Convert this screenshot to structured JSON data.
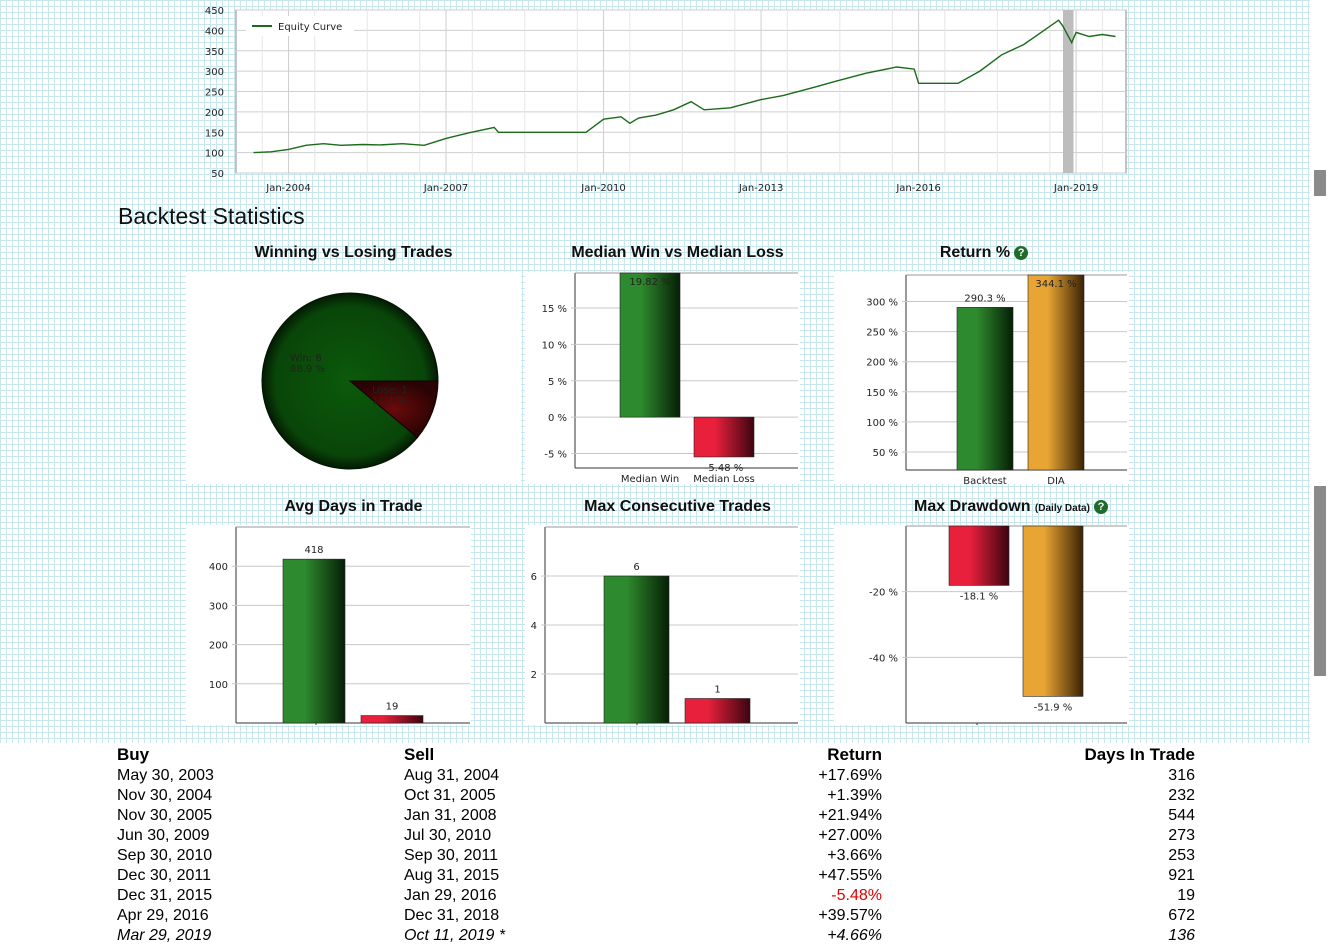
{
  "equity_chart": {
    "legend": "Equity Curve",
    "y_ticks": [
      "450",
      "400",
      "350",
      "300",
      "250",
      "200",
      "150",
      "100",
      "50"
    ],
    "x_ticks": [
      "Jan-2004",
      "Jan-2007",
      "Jan-2010",
      "Jan-2013",
      "Jan-2016",
      "Jan-2019"
    ]
  },
  "section_title": "Backtest Statistics",
  "charts_titles": {
    "win_loss": "Winning vs Losing Trades",
    "median": "Median Win vs Median Loss",
    "return": "Return %",
    "avg_days": "Avg Days in Trade",
    "max_consec": "Max Consecutive Trades",
    "max_dd": "Max Drawdown",
    "max_dd_note": "(Daily Data)",
    "help": "?"
  },
  "colors": {
    "line": "#1a6b1a",
    "win_green": "#1e7a22",
    "loss_red": "#c8102e",
    "gold": "#d99a2b",
    "pie_win": "#0a4a0a",
    "pie_loss": "#5c0a0a"
  },
  "chart_data": [
    {
      "type": "line",
      "title": "",
      "series": [
        {
          "name": "Equity Curve",
          "x": [
            "2003-05",
            "2003-09",
            "2004-01",
            "2004-05",
            "2004-09",
            "2005-01",
            "2005-06",
            "2005-10",
            "2006-03",
            "2006-08",
            "2007-01",
            "2007-06",
            "2007-12",
            "2008-01",
            "2009-06",
            "2009-09",
            "2010-01",
            "2010-05",
            "2010-07",
            "2010-09",
            "2011-01",
            "2011-05",
            "2011-09",
            "2011-12",
            "2012-06",
            "2013-01",
            "2013-06",
            "2014-01",
            "2014-06",
            "2015-01",
            "2015-08",
            "2015-12",
            "2016-01",
            "2016-04",
            "2016-10",
            "2017-03",
            "2017-08",
            "2018-01",
            "2018-05",
            "2018-09",
            "2018-10",
            "2018-12",
            "2019-01",
            "2019-04",
            "2019-07",
            "2019-10"
          ],
          "values": [
            100,
            102,
            108,
            118,
            122,
            118,
            120,
            119,
            122,
            118,
            135,
            148,
            162,
            150,
            150,
            150,
            182,
            188,
            172,
            185,
            192,
            205,
            225,
            205,
            210,
            230,
            240,
            260,
            275,
            295,
            310,
            305,
            270,
            270,
            270,
            300,
            340,
            365,
            395,
            425,
            410,
            370,
            395,
            385,
            390,
            385
          ]
        }
      ],
      "xlabel": "",
      "ylabel": "",
      "ylim": [
        50,
        450
      ],
      "x_tick_labels": [
        "Jan-2004",
        "Jan-2007",
        "Jan-2010",
        "Jan-2013",
        "Jan-2016",
        "Jan-2019"
      ],
      "grid": true,
      "legend": "top-left"
    },
    {
      "type": "pie",
      "title": "Winning vs Losing Trades",
      "labels": [
        "Win: 8",
        "Lose: 1"
      ],
      "values": [
        88.9,
        11.1
      ],
      "value_labels": [
        "88.9 %",
        "11.1 %"
      ]
    },
    {
      "type": "bar",
      "title": "Median Win vs Median Loss",
      "categories": [
        "Median Win",
        "Median Loss"
      ],
      "values": [
        19.82,
        -5.48
      ],
      "value_labels": [
        "19.82 %",
        "-5.48 %"
      ],
      "ylim": [
        -7,
        19.82
      ],
      "y_tick_labels": [
        "15 %",
        "10 %",
        "5 %",
        "0 %",
        "-5 %"
      ]
    },
    {
      "type": "bar",
      "title": "Return %",
      "categories": [
        "Backtest",
        "DIA"
      ],
      "values": [
        290.3,
        344.1
      ],
      "value_labels": [
        "290.3 %",
        "344.1 %"
      ],
      "ylim": [
        20,
        344.1
      ],
      "y_tick_labels": [
        "300 %",
        "250 %",
        "200 %",
        "150 %",
        "100 %",
        "50 %"
      ]
    },
    {
      "type": "bar",
      "title": "Avg Days in Trade",
      "categories": [
        "",
        ""
      ],
      "values": [
        418,
        19
      ],
      "value_labels": [
        "418",
        "19"
      ],
      "ylim": [
        0,
        500
      ],
      "y_tick_labels": [
        "400",
        "300",
        "200",
        "100"
      ]
    },
    {
      "type": "bar",
      "title": "Max Consecutive Trades",
      "categories": [
        "",
        ""
      ],
      "values": [
        6,
        1
      ],
      "value_labels": [
        "6",
        "1"
      ],
      "ylim": [
        0,
        8
      ],
      "y_tick_labels": [
        "6",
        "4",
        "2"
      ]
    },
    {
      "type": "bar",
      "title": "Max Drawdown (Daily Data)",
      "categories": [
        "",
        ""
      ],
      "values": [
        -18.1,
        -51.9
      ],
      "value_labels": [
        "-18.1 %",
        "-51.9 %"
      ],
      "ylim": [
        -60,
        0
      ],
      "y_tick_labels": [
        "-20 %",
        "-40 %"
      ]
    }
  ],
  "trades": {
    "headers": [
      "Buy",
      "Sell",
      "Return",
      "Days In Trade"
    ],
    "rows": [
      [
        "May 30, 2003",
        "Aug 31, 2004",
        "+17.69%",
        "316"
      ],
      [
        "Nov 30, 2004",
        "Oct 31, 2005",
        "+1.39%",
        "232"
      ],
      [
        "Nov 30, 2005",
        "Jan 31, 2008",
        "+21.94%",
        "544"
      ],
      [
        "Jun 30, 2009",
        "Jul 30, 2010",
        "+27.00%",
        "273"
      ],
      [
        "Sep 30, 2010",
        "Sep 30, 2011",
        "+3.66%",
        "253"
      ],
      [
        "Dec 30, 2011",
        "Aug 31, 2015",
        "+47.55%",
        "921"
      ],
      [
        "Dec 31, 2015",
        "Jan 29, 2016",
        "-5.48%",
        "19"
      ],
      [
        "Apr 29, 2016",
        "Dec 31, 2018",
        "+39.57%",
        "672"
      ],
      [
        "Mar 29, 2019",
        "Oct 11, 2019 *",
        "+4.66%",
        "136"
      ]
    ]
  }
}
